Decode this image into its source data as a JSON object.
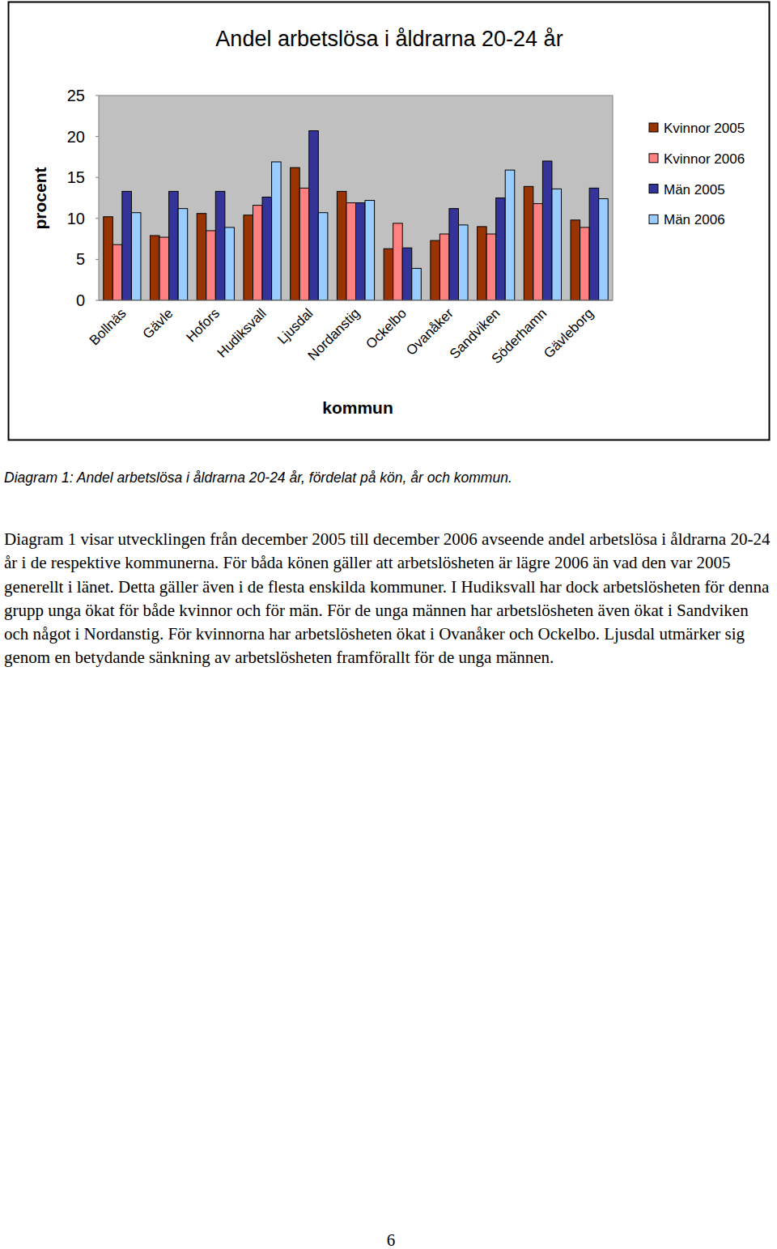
{
  "chart_data": {
    "type": "bar",
    "title": "Andel arbetslösa i åldrarna 20-24 år",
    "y_label": "procent",
    "x_label": "kommun",
    "categories": [
      "Bollnäs",
      "Gävle",
      "Hofors",
      "Hudiksvall",
      "Ljusdal",
      "Nordanstig",
      "Ockelbo",
      "Ovanåker",
      "Sandviken",
      "Söderhamn",
      "Gävleborg"
    ],
    "series": [
      {
        "name": "Kvinnor 2005",
        "color": "#993300",
        "values": [
          10.2,
          7.9,
          10.6,
          10.4,
          16.2,
          13.3,
          6.3,
          7.3,
          9.0,
          13.9,
          9.8
        ]
      },
      {
        "name": "Kvinnor 2006",
        "color": "#ff8080",
        "values": [
          6.8,
          7.7,
          8.5,
          11.6,
          13.7,
          11.9,
          9.4,
          8.1,
          8.1,
          11.8,
          8.9
        ]
      },
      {
        "name": "Män 2005",
        "color": "#333399",
        "values": [
          13.3,
          13.3,
          13.3,
          12.6,
          20.7,
          11.9,
          6.4,
          11.2,
          12.5,
          17.0,
          13.7
        ]
      },
      {
        "name": "Män 2006",
        "color": "#99ccff",
        "values": [
          10.7,
          11.2,
          8.9,
          16.9,
          10.7,
          12.2,
          3.9,
          9.2,
          15.9,
          13.6,
          12.4
        ]
      }
    ],
    "ylim": [
      0,
      25
    ],
    "yticks": [
      0,
      5,
      10,
      15,
      20,
      25
    ],
    "grid": false,
    "legend": "right"
  },
  "caption": "Diagram 1: Andel arbetslösa i åldrarna 20-24 år, fördelat på kön, år och kommun.",
  "body_text": "Diagram 1 visar utvecklingen från december 2005 till december 2006 avseende andel arbetslösa i åldrarna 20-24 år i de respektive kommunerna. För båda könen gäller att arbetslösheten är lägre 2006 än vad den var 2005 generellt i länet. Detta gäller även i de flesta enskilda kommuner. I Hudiksvall har dock arbetslösheten för denna grupp unga ökat för både kvinnor och för män. För de unga männen har arbetslösheten även ökat i Sandviken och något i Nordanstig. För kvinnorna har arbetslösheten ökat i Ovanåker och Ockelbo. Ljusdal utmärker sig genom en betydande sänkning av arbetslösheten framförallt för de unga männen.",
  "page_number": "6"
}
